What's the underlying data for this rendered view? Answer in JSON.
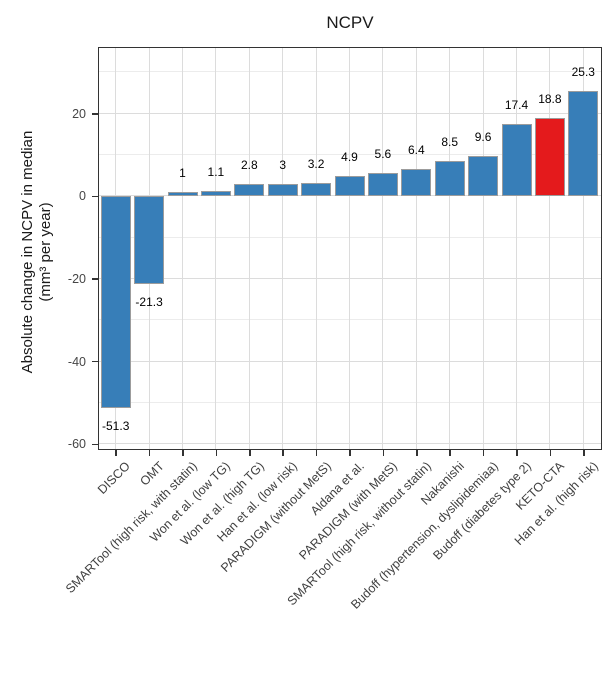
{
  "chart_data": {
    "type": "bar",
    "title": "NCPV",
    "ylabel_line1": "Absolute change in NCPV in median",
    "ylabel_line2": "(mm³ per year)",
    "xlabel": "",
    "categories": [
      "DISCO",
      "OMT",
      "SMARTool (high risk, with statin)",
      "Won et al. (low TG)",
      "Won et al. (high TG)",
      "Han et al. (low risk)",
      "PARADIGM (without MetS)",
      "Aldana et al.",
      "PARADIGM (with MetS)",
      "SMARTool (high risk, without statin)",
      "Nakanishi",
      "Budoff (hypertension, dyslipidemiaa)",
      "Budoff (diabetes type 2)",
      "KETO-CTA",
      "Han et al. (high risk)"
    ],
    "values": [
      -51.3,
      -21.3,
      1,
      1.1,
      2.8,
      3,
      3.2,
      4.9,
      5.6,
      6.4,
      8.5,
      9.6,
      17.4,
      18.8,
      25.3
    ],
    "highlight_category": "KETO-CTA",
    "colors": {
      "bar_default": "#377eb8",
      "bar_highlight": "#e41a1c",
      "grid_major": "#dcdcdc",
      "grid_minor": "#ececec"
    },
    "y_ticks": [
      20,
      0,
      -20,
      -40,
      -60
    ],
    "y_minor_ticks": [
      30,
      10,
      -10,
      -30,
      -50
    ],
    "ylim": [
      -61.0,
      35.8
    ],
    "grid": true,
    "legend": "none"
  }
}
